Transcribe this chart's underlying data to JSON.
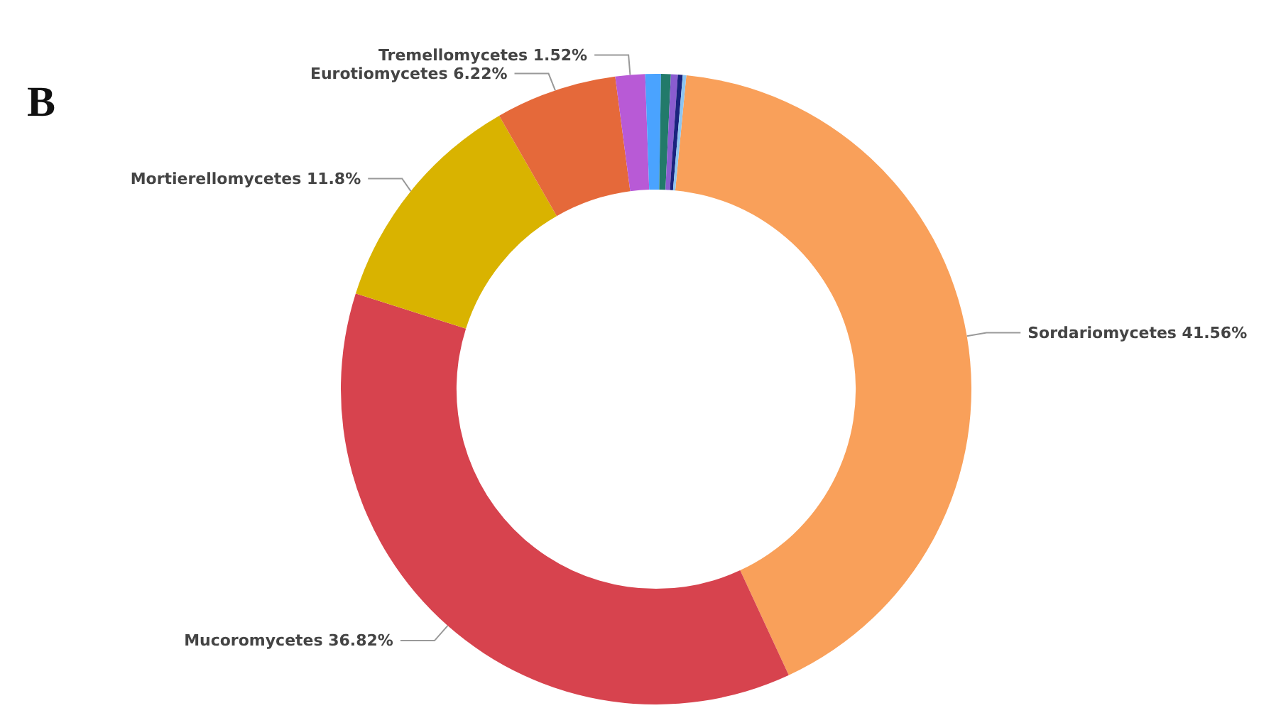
{
  "chart_data": {
    "type": "donut",
    "title": "B",
    "categories": [
      "Sordariomycetes",
      "Mucoromycetes",
      "Mortierellomycetes",
      "Eurotiomycetes",
      "Tremellomycetes",
      null,
      null,
      null,
      null,
      null
    ],
    "values": [
      41.56,
      36.82,
      11.8,
      6.22,
      1.52,
      0.8,
      0.5,
      0.35,
      0.25,
      0.18
    ],
    "colors": [
      "#f9a05a",
      "#d7434e",
      "#d9b300",
      "#e5693a",
      "#b85ad6",
      "#4aa3ff",
      "#227a6a",
      "#8a5cd0",
      "#1a237e",
      "#8ec5f0"
    ],
    "value_labels": [
      "41.56%",
      "36.82%",
      "11.8%",
      "6.22%",
      "1.52%",
      null,
      null,
      null,
      null,
      null
    ],
    "legend": false
  }
}
